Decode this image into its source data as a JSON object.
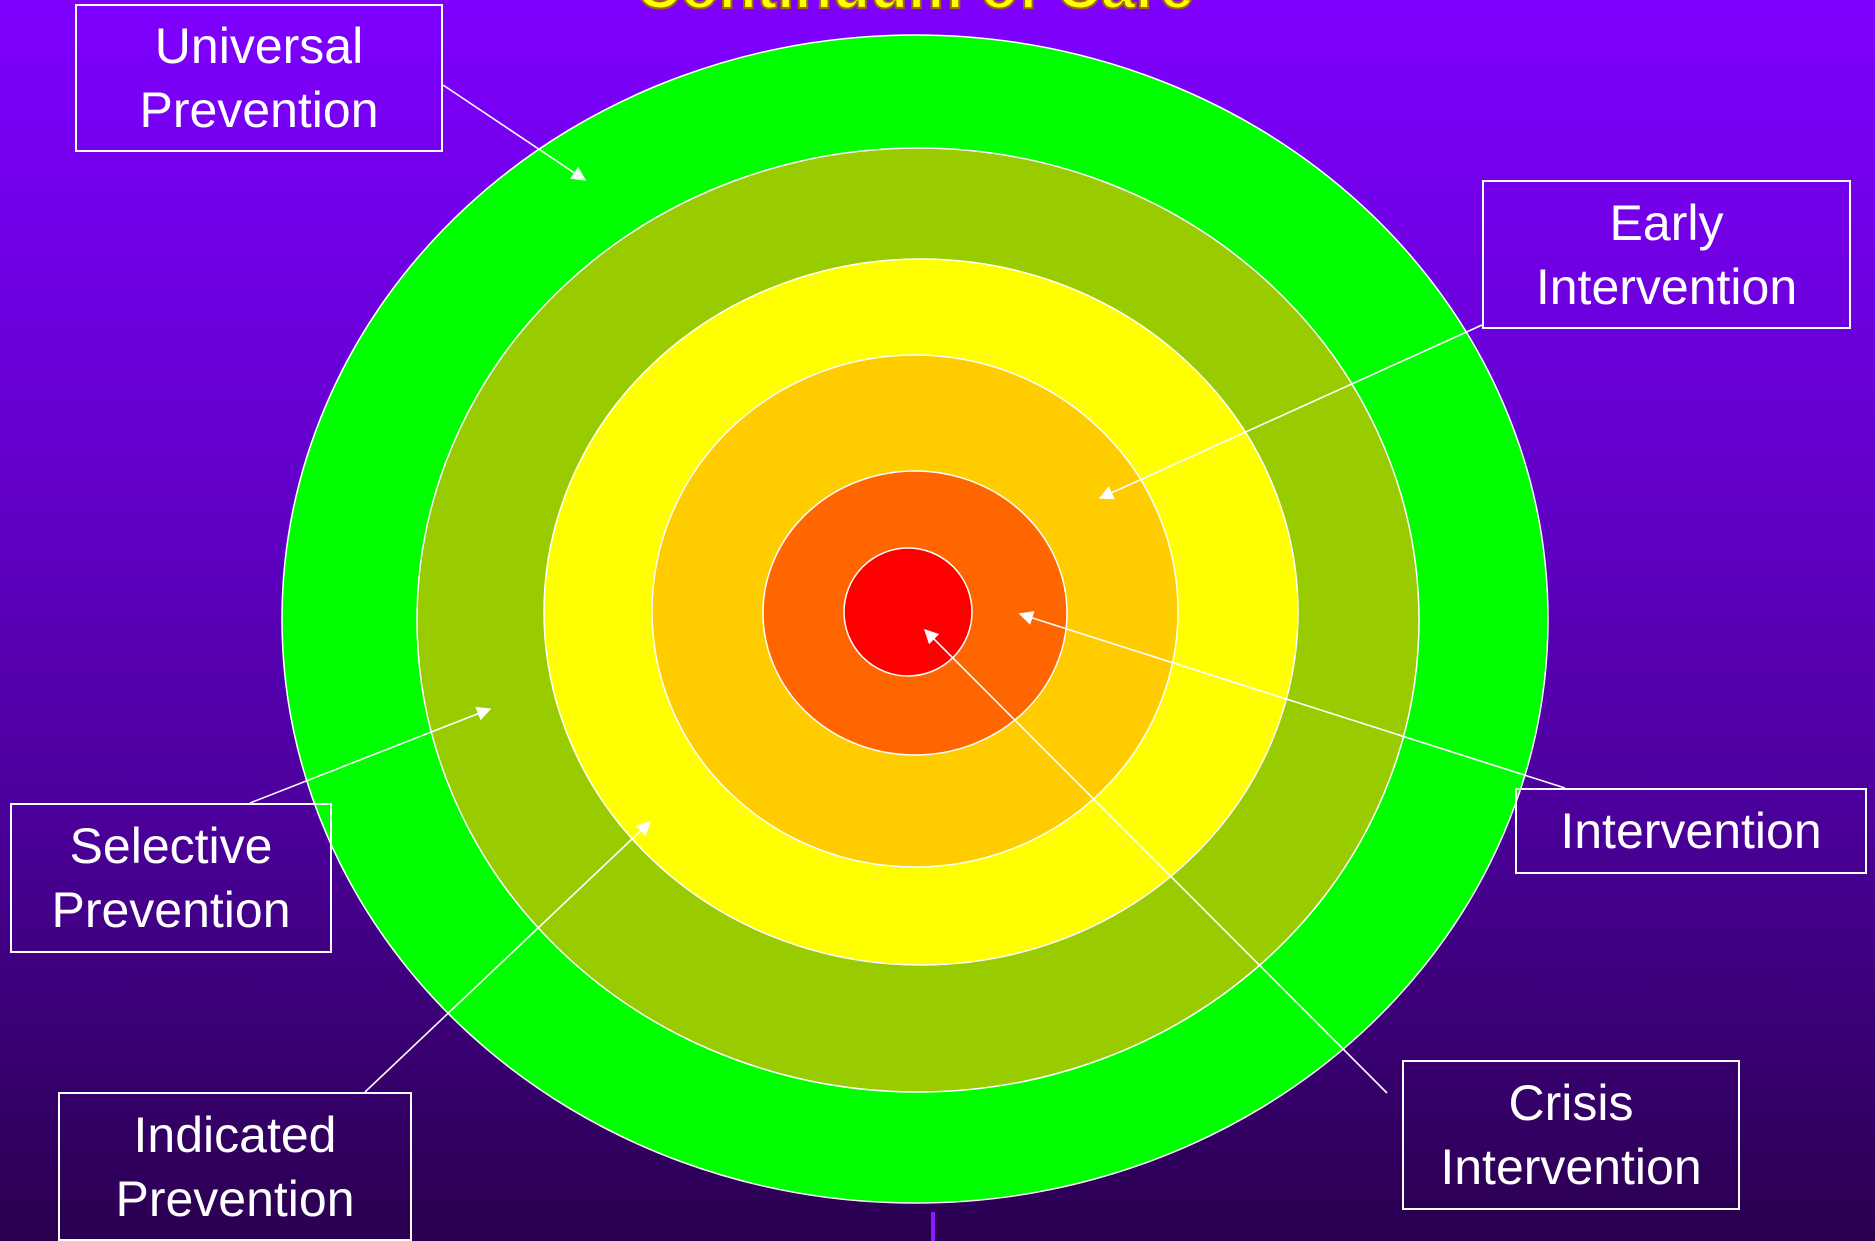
{
  "title": "Continuum of Care",
  "rings": [
    {
      "level": "universal-prevention",
      "color": "#00ff00"
    },
    {
      "level": "selective-prevention",
      "color": "#99cc00"
    },
    {
      "level": "indicated-prevention",
      "color": "#ffff00"
    },
    {
      "level": "early-intervention",
      "color": "#ffcc00"
    },
    {
      "level": "intervention",
      "color": "#ff6600"
    },
    {
      "level": "crisis-intervention",
      "color": "#ff0000"
    }
  ],
  "labels": {
    "universal_prevention": {
      "line1": "Universal",
      "line2": "Prevention"
    },
    "early_intervention": {
      "line1": "Early",
      "line2": "Intervention"
    },
    "selective_prevention": {
      "line1": "Selective",
      "line2": "Prevention"
    },
    "intervention": {
      "line1": "Intervention"
    },
    "indicated_prevention": {
      "line1": "Indicated",
      "line2": "Prevention"
    },
    "crisis_intervention": {
      "line1": "Crisis",
      "line2": "Intervention"
    }
  },
  "colors": {
    "background_top": "#7f00ff",
    "background_bottom": "#2a004f",
    "title": "#ffff00",
    "label_border": "#ffffff",
    "label_text": "#ffffff"
  }
}
